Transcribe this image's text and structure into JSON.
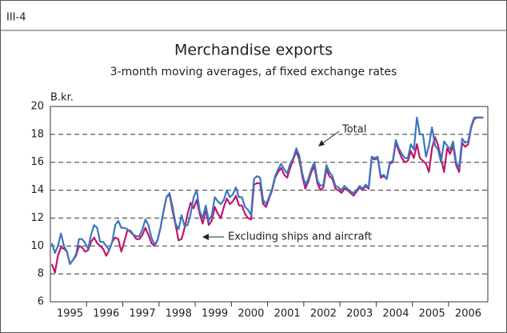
{
  "header": {
    "label": "III-4"
  },
  "chart_data": {
    "type": "line",
    "title": "Merchandise exports",
    "subtitle": "3-month moving averages, af fixed exchange rates",
    "y_label": "B.kr.",
    "annotations": [
      "Total",
      "Excluding ships and aircraft"
    ],
    "categories": [
      null,
      null,
      null,
      null,
      null,
      null,
      "1995",
      null,
      null,
      null,
      null,
      null,
      null,
      null,
      null,
      null,
      null,
      null,
      "1996",
      null,
      null,
      null,
      null,
      null,
      null,
      null,
      null,
      null,
      null,
      null,
      "1997",
      null,
      null,
      null,
      null,
      null,
      null,
      null,
      null,
      null,
      null,
      null,
      "1998",
      null,
      null,
      null,
      null,
      null,
      null,
      null,
      null,
      null,
      null,
      null,
      "1999",
      null,
      null,
      null,
      null,
      null,
      null,
      null,
      null,
      null,
      null,
      null,
      "2000",
      null,
      null,
      null,
      null,
      null,
      null,
      null,
      null,
      null,
      null,
      null,
      "2001",
      null,
      null,
      null,
      null,
      null,
      null,
      null,
      null,
      null,
      null,
      null,
      "2002",
      null,
      null,
      null,
      null,
      null,
      null,
      null,
      null,
      null,
      null,
      null,
      "2003",
      null,
      null,
      null,
      null,
      null,
      null,
      null,
      null,
      null,
      null,
      null,
      "2004",
      null,
      null,
      null,
      null,
      null,
      null,
      null,
      null,
      null,
      null,
      null,
      "2005",
      null,
      null,
      null,
      null,
      null,
      null,
      null,
      null,
      null,
      null,
      null,
      "2006",
      null,
      null,
      null,
      null,
      null
    ],
    "series": [
      {
        "name": "Excluding ships and aircraft",
        "color": "#c0166e",
        "values": [
          8.7,
          8.1,
          9.3,
          9.9,
          9.8,
          9.6,
          8.7,
          9.0,
          9.3,
          10.0,
          9.9,
          9.6,
          9.7,
          10.3,
          10.6,
          10.2,
          10.0,
          9.8,
          9.3,
          9.7,
          10.3,
          10.6,
          10.5,
          9.6,
          10.3,
          11.1,
          11.1,
          10.8,
          10.5,
          10.5,
          10.8,
          11.3,
          10.8,
          10.2,
          10.0,
          10.4,
          11.3,
          12.5,
          13.5,
          13.7,
          12.5,
          11.5,
          10.4,
          10.5,
          11.3,
          12.3,
          13.1,
          12.7,
          13.3,
          12.3,
          11.6,
          12.6,
          11.5,
          11.8,
          12.8,
          12.3,
          12.0,
          12.8,
          13.4,
          13.0,
          13.2,
          13.6,
          12.9,
          12.9,
          12.3,
          12.0,
          11.9,
          14.4,
          14.5,
          14.5,
          13.0,
          12.8,
          13.4,
          14.0,
          14.9,
          15.3,
          15.6,
          15.1,
          14.9,
          15.6,
          16.2,
          16.8,
          16.2,
          15.0,
          14.1,
          14.6,
          15.3,
          15.7,
          14.5,
          14.0,
          14.2,
          15.5,
          15.0,
          14.8,
          14.1,
          14.0,
          13.8,
          14.1,
          14.0,
          13.8,
          13.6,
          13.9,
          14.2,
          14.0,
          14.3,
          14.1,
          16.3,
          16.2,
          16.3,
          14.9,
          15.0,
          14.8,
          15.9,
          16.0,
          17.4,
          16.8,
          16.3,
          16.0,
          16.1,
          16.8,
          16.3,
          17.3,
          16.3,
          16.1,
          15.9,
          15.3,
          17.0,
          17.8,
          17.2,
          16.3,
          15.3,
          17.0,
          16.6,
          17.2,
          15.8,
          15.3,
          17.4,
          17.1,
          17.3,
          18.5,
          19.1,
          19.2,
          19.2,
          19.2
        ]
      },
      {
        "name": "Total",
        "color": "#3a78c0",
        "values": [
          10.2,
          9.5,
          10.0,
          10.9,
          10.0,
          9.6,
          8.7,
          9.0,
          9.4,
          10.5,
          10.5,
          10.2,
          9.8,
          10.8,
          11.5,
          11.3,
          10.3,
          10.3,
          10.0,
          9.7,
          10.3,
          11.5,
          11.8,
          11.3,
          11.3,
          11.2,
          11.0,
          10.8,
          10.7,
          10.7,
          11.2,
          11.9,
          11.5,
          10.6,
          10.1,
          10.4,
          11.3,
          12.5,
          13.5,
          13.8,
          12.8,
          11.6,
          11.2,
          12.2,
          11.4,
          11.5,
          12.3,
          13.5,
          14.0,
          12.5,
          12.0,
          12.9,
          11.8,
          12.2,
          13.5,
          13.2,
          13.0,
          13.3,
          14.0,
          13.5,
          13.7,
          14.2,
          13.5,
          13.5,
          12.8,
          12.6,
          12.2,
          14.8,
          15.0,
          14.9,
          13.3,
          13.0,
          13.5,
          14.1,
          15.0,
          15.5,
          15.9,
          15.5,
          15.2,
          15.9,
          16.3,
          17.0,
          16.5,
          15.2,
          14.4,
          14.8,
          15.5,
          16.0,
          14.7,
          14.3,
          14.4,
          15.8,
          15.3,
          15.0,
          14.3,
          14.2,
          14.0,
          14.3,
          14.1,
          13.9,
          13.8,
          14.0,
          14.3,
          14.1,
          14.4,
          14.2,
          16.4,
          16.3,
          16.4,
          15.0,
          15.1,
          14.8,
          16.0,
          16.1,
          17.6,
          17.0,
          16.6,
          16.3,
          16.3,
          17.3,
          16.9,
          19.2,
          18.0,
          18.0,
          16.4,
          17.2,
          18.5,
          17.2,
          16.9,
          16.0,
          17.5,
          17.2,
          16.9,
          17.5,
          16.0,
          15.6,
          17.7,
          17.4,
          17.5,
          18.6,
          19.2,
          19.2,
          19.2,
          19.2
        ]
      }
    ],
    "ylim": [
      6,
      20
    ],
    "yticks": [
      6,
      8,
      10,
      12,
      14,
      16,
      18,
      20
    ],
    "grid": true
  }
}
